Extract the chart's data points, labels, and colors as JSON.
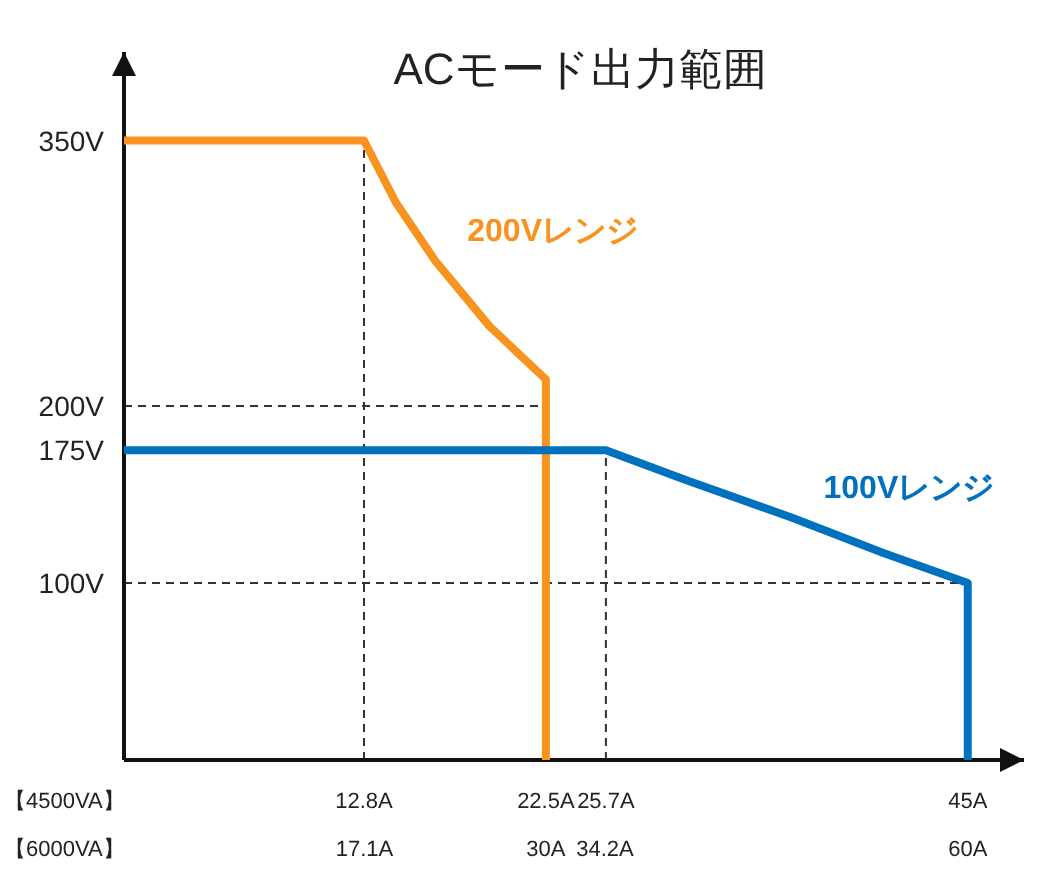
{
  "chart_data": {
    "type": "line",
    "title": "ACモード出力範囲",
    "xlabel": "【4500VA】",
    "x2label": "【6000VA】",
    "xlim": [
      0,
      48
    ],
    "xticks": [
      {
        "value": 12.8,
        "label": "12.8A"
      },
      {
        "value": 22.5,
        "label": "22.5A"
      },
      {
        "value": 25.7,
        "label": "25.7A"
      },
      {
        "value": 45,
        "label": "45A"
      }
    ],
    "x2lim": [
      0,
      64
    ],
    "x2ticks": [
      {
        "value": 17.1,
        "label": "17.1A"
      },
      {
        "value": 30,
        "label": "30A"
      },
      {
        "value": 34.2,
        "label": "34.2A"
      },
      {
        "value": 60,
        "label": "60A"
      }
    ],
    "ylim": [
      0,
      400
    ],
    "yticks": [
      {
        "value": 100,
        "label": "100V"
      },
      {
        "value": 175,
        "label": "175V"
      },
      {
        "value": 200,
        "label": "200V"
      },
      {
        "value": 350,
        "label": "350V"
      }
    ],
    "ref_lines": [
      {
        "axis": "y",
        "value": 200,
        "color": "#333333",
        "line_style": "dashed"
      },
      {
        "axis": "y",
        "value": 100,
        "color": "#333333",
        "line_style": "dashed"
      },
      {
        "axis": "x",
        "value": 12.8,
        "color": "#333333",
        "line_style": "dashed"
      },
      {
        "axis": "x",
        "value": 25.7,
        "color": "#333333",
        "line_style": "dashed"
      }
    ],
    "legend": false,
    "line_style": "solid",
    "marker": "none",
    "series": [
      {
        "name": "200Vレンジ",
        "color": "#f7931e",
        "x": [
          0,
          12.8,
          14.5,
          16.6,
          19.5,
          22.5,
          22.5,
          22.5
        ],
        "values": [
          350,
          350,
          315,
          282,
          245,
          215,
          200,
          0
        ]
      },
      {
        "name": "100Vレンジ",
        "color": "#0071bc",
        "x": [
          0,
          25.7,
          30,
          35.6,
          40.5,
          45,
          45
        ],
        "values": [
          175,
          175,
          158,
          137,
          117,
          100,
          0
        ]
      }
    ]
  }
}
